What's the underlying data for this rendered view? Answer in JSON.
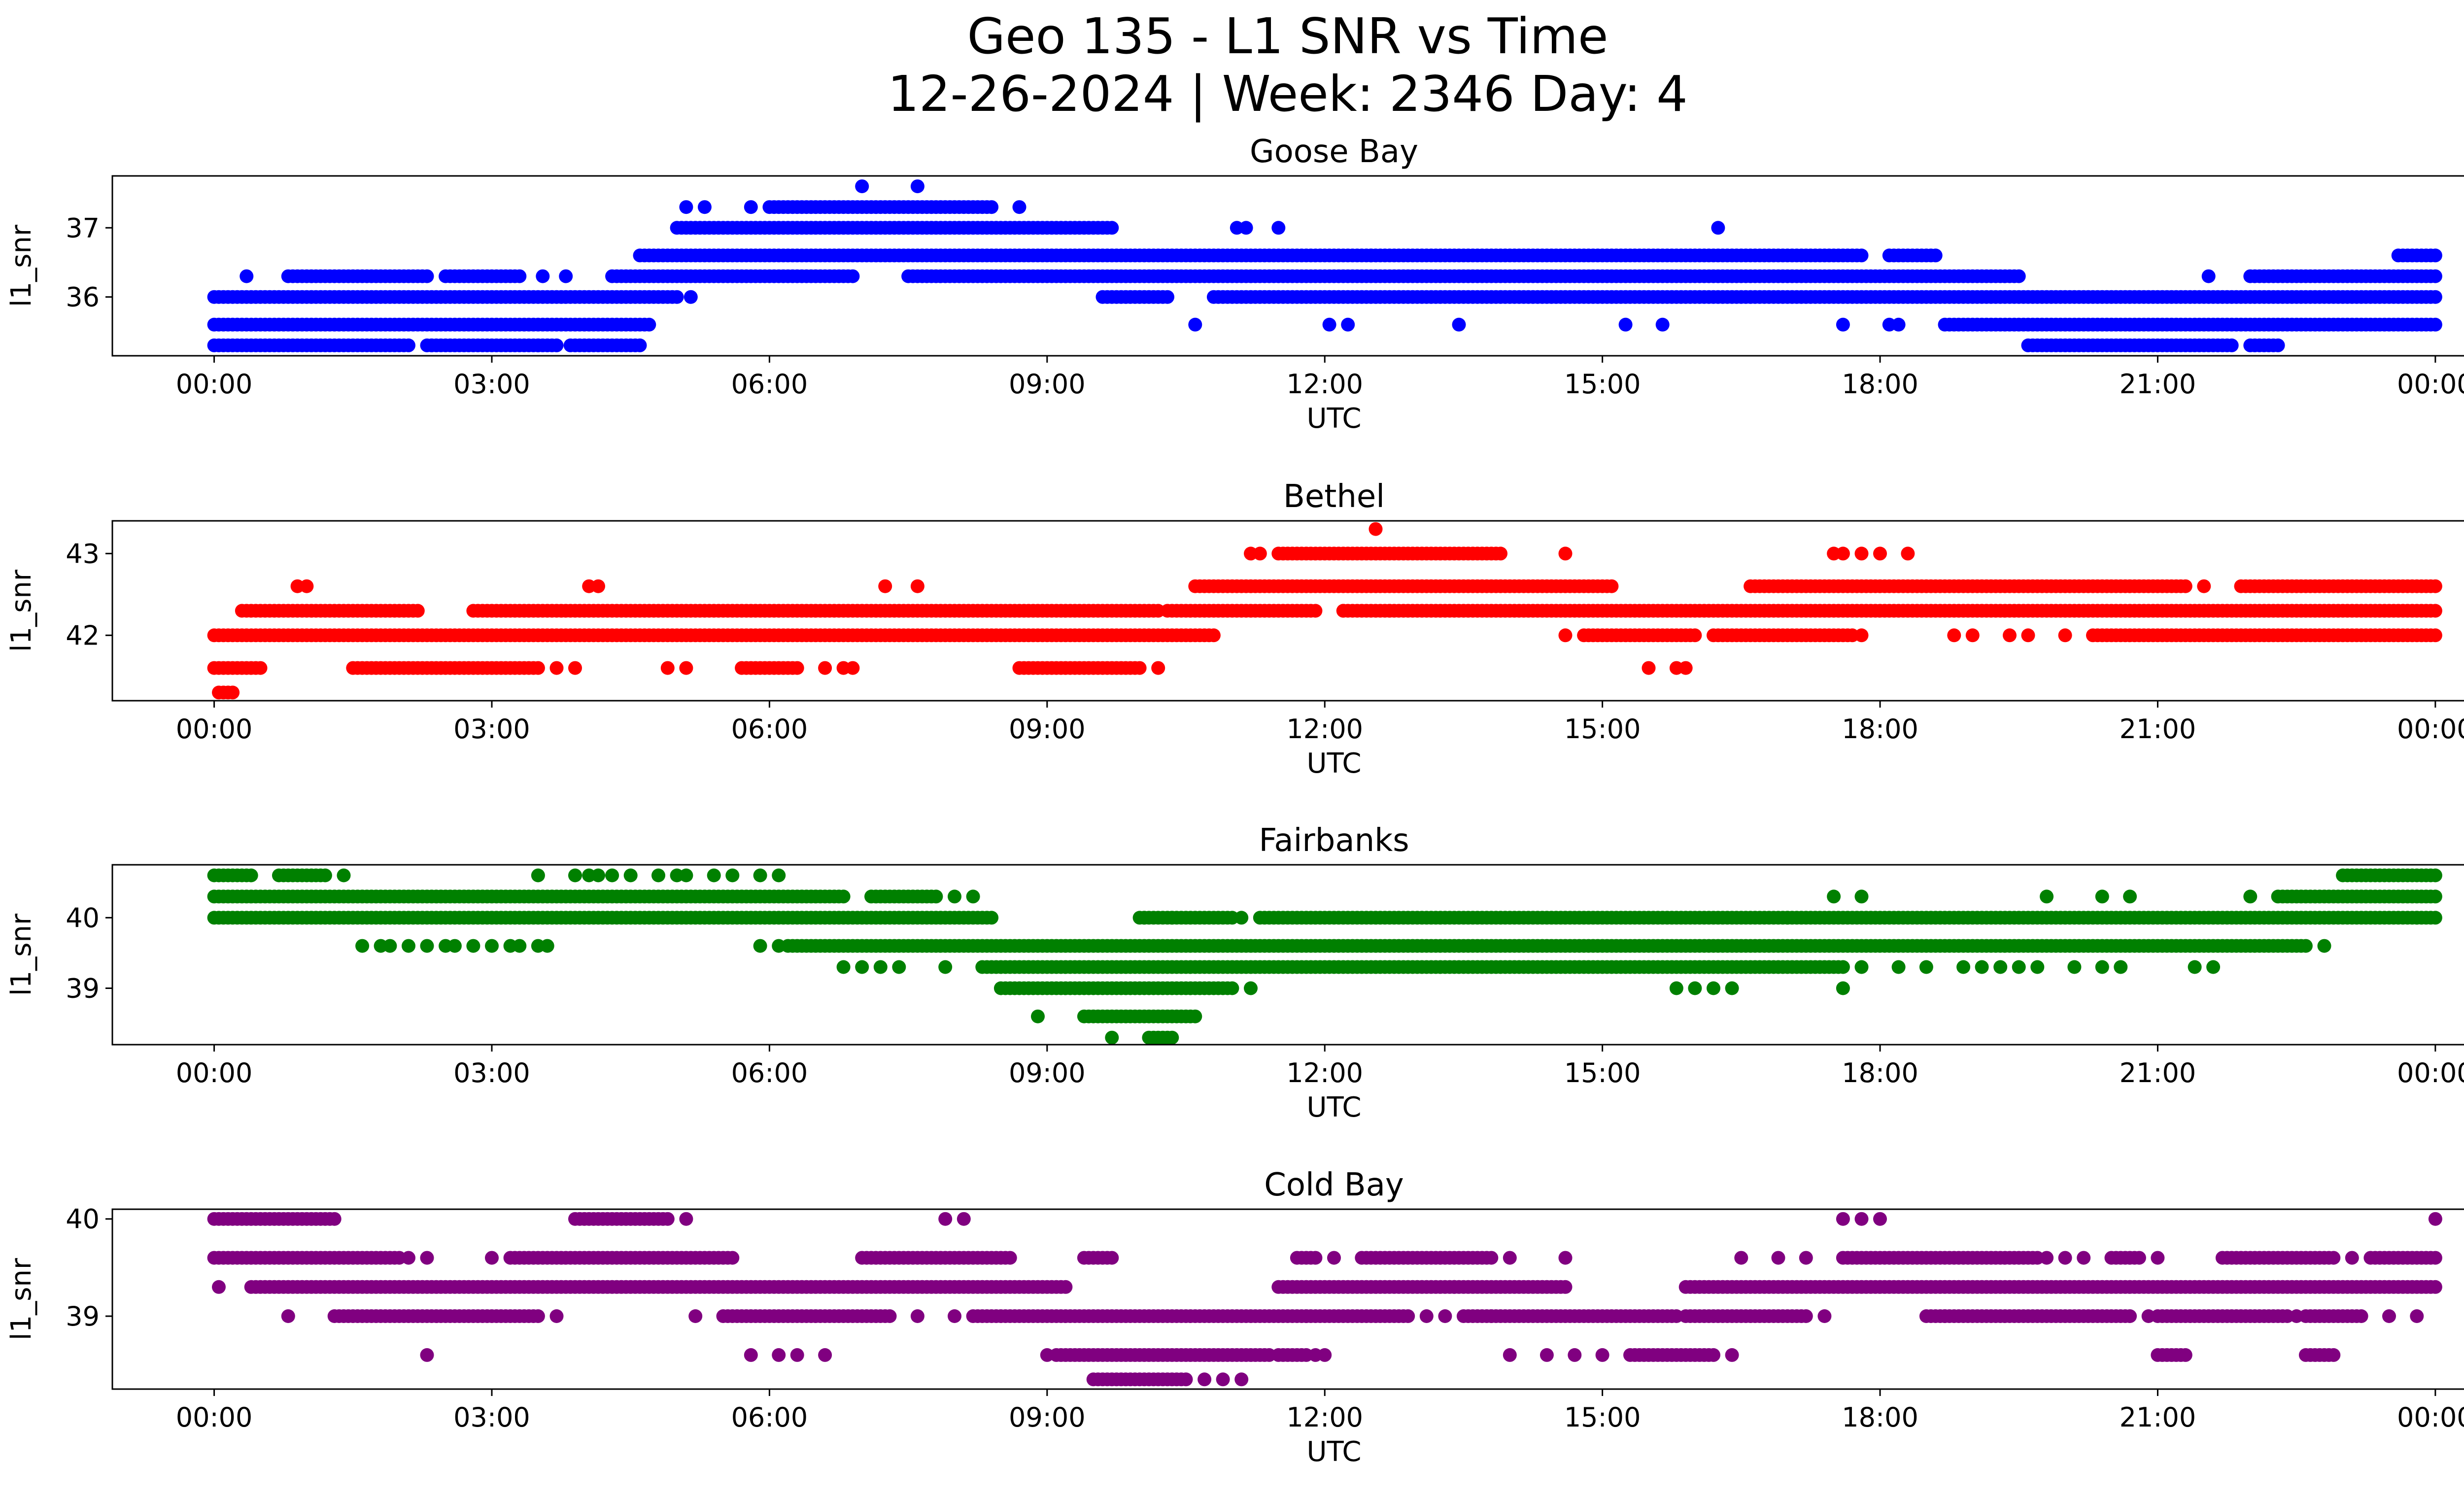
{
  "figure": {
    "title_line1": "Geo 135 - L1 SNR vs Time",
    "title_line2": "12-26-2024 | Week: 2346 Day: 4"
  },
  "chart_data": [
    {
      "type": "scatter",
      "title": "Goose Bay",
      "xlabel": "UTC",
      "ylabel": "l1_snr",
      "color": "#0000ff",
      "xlim_hours": [
        -1.1,
        25.3
      ],
      "ylim": [
        35.15,
        37.75
      ],
      "x_ticks": [
        "00:00",
        "03:00",
        "06:00",
        "09:00",
        "12:00",
        "15:00",
        "18:00",
        "21:00",
        "00:00"
      ],
      "x_tick_hours": [
        0,
        3,
        6,
        9,
        12,
        15,
        18,
        21,
        24
      ],
      "y_ticks": [
        36,
        37
      ],
      "levels": [
        {
          "y": 35.3,
          "runs": [
            [
              0,
              2.1
            ],
            [
              2.3,
              3.7
            ],
            [
              3.85,
              4.6
            ],
            [
              19.6,
              21.8
            ],
            [
              22.0,
              22.3
            ]
          ],
          "dots": [
            2.35,
            3.5
          ]
        },
        {
          "y": 35.6,
          "runs": [
            [
              0,
              4.7
            ],
            [
              18.7,
              24
            ]
          ],
          "dots": [
            10.6,
            12.05,
            12.25,
            13.45,
            15.25,
            15.65,
            17.6,
            18.1,
            18.2
          ]
        },
        {
          "y": 36.0,
          "runs": [
            [
              0,
              5.0
            ],
            [
              9.6,
              10.3
            ],
            [
              10.8,
              24
            ]
          ],
          "dots": [
            5.15
          ]
        },
        {
          "y": 36.3,
          "runs": [
            [
              0.8,
              2.3
            ],
            [
              2.5,
              3.3
            ],
            [
              4.3,
              6.9
            ],
            [
              7.5,
              19.5
            ],
            [
              22.0,
              24
            ]
          ],
          "dots": [
            0.35,
            3.55,
            3.8,
            21.55
          ]
        },
        {
          "y": 36.6,
          "runs": [
            [
              4.6,
              12.5
            ],
            [
              12.5,
              17.8
            ],
            [
              18.1,
              18.6
            ],
            [
              23.6,
              24
            ]
          ]
        },
        {
          "y": 37.0,
          "runs": [
            [
              5.0,
              9.7
            ]
          ],
          "dots": [
            11.05,
            11.15,
            11.5,
            16.25
          ]
        },
        {
          "y": 37.3,
          "runs": [
            [
              6.0,
              8.4
            ]
          ],
          "dots": [
            5.1,
            5.3,
            5.8,
            8.7
          ]
        },
        {
          "y": 37.6,
          "runs": [],
          "dots": [
            7.0,
            7.6
          ]
        }
      ]
    },
    {
      "type": "scatter",
      "title": "Bethel",
      "xlabel": "UTC",
      "ylabel": "l1_snr",
      "color": "#ff0000",
      "xlim_hours": [
        -1.1,
        25.3
      ],
      "ylim": [
        41.2,
        43.4
      ],
      "x_ticks": [
        "00:00",
        "03:00",
        "06:00",
        "09:00",
        "12:00",
        "15:00",
        "18:00",
        "21:00",
        "00:00"
      ],
      "x_tick_hours": [
        0,
        3,
        6,
        9,
        12,
        15,
        18,
        21,
        24
      ],
      "y_ticks": [
        42,
        43
      ],
      "levels": [
        {
          "y": 41.3,
          "runs": [
            [
              0.05,
              0.2
            ]
          ]
        },
        {
          "y": 41.6,
          "runs": [
            [
              0,
              0.5
            ],
            [
              1.5,
              3.5
            ],
            [
              5.7,
              6.3
            ],
            [
              8.7,
              10.0
            ]
          ],
          "dots": [
            3.7,
            3.9,
            4.9,
            5.1,
            6.6,
            6.8,
            6.9,
            10.2,
            15.5,
            15.8,
            15.9
          ]
        },
        {
          "y": 42.0,
          "runs": [
            [
              0,
              10.8
            ],
            [
              14.8,
              16.0
            ],
            [
              16.2,
              17.7
            ],
            [
              20.3,
              24
            ]
          ],
          "dots": [
            14.6,
            17.8,
            18.8,
            19.0,
            19.4,
            19.6,
            20.0
          ]
        },
        {
          "y": 42.3,
          "runs": [
            [
              0.3,
              2.2
            ],
            [
              2.8,
              10.2
            ],
            [
              10.3,
              11.9
            ],
            [
              12.2,
              24
            ]
          ],
          "dots": [
            12.2,
            12.7
          ]
        },
        {
          "y": 42.6,
          "runs": [
            [
              10.6,
              15.1
            ],
            [
              16.6,
              21.3
            ],
            [
              21.9,
              24
            ]
          ],
          "dots": [
            0.9,
            1.0,
            4.05,
            4.15,
            7.25,
            7.6,
            21.5
          ]
        },
        {
          "y": 43.0,
          "runs": [
            [
              11.5,
              13.9
            ]
          ],
          "dots": [
            11.2,
            11.3,
            14.6,
            17.5,
            17.6,
            17.8,
            18.0,
            18.3
          ]
        },
        {
          "y": 43.3,
          "runs": [],
          "dots": [
            12.55
          ]
        }
      ]
    },
    {
      "type": "scatter",
      "title": "Fairbanks",
      "xlabel": "UTC",
      "ylabel": "l1_snr",
      "color": "#008000",
      "xlim_hours": [
        -1.1,
        25.3
      ],
      "ylim": [
        38.2,
        40.75
      ],
      "x_ticks": [
        "00:00",
        "03:00",
        "06:00",
        "09:00",
        "12:00",
        "15:00",
        "18:00",
        "21:00",
        "00:00"
      ],
      "x_tick_hours": [
        0,
        3,
        6,
        9,
        12,
        15,
        18,
        21,
        24
      ],
      "y_ticks": [
        39,
        40
      ],
      "levels": [
        {
          "y": 38.3,
          "runs": [
            [
              10.1,
              10.35
            ]
          ],
          "dots": [
            9.7
          ]
        },
        {
          "y": 38.6,
          "runs": [
            [
              9.4,
              10.6
            ]
          ],
          "dots": [
            8.9
          ]
        },
        {
          "y": 39.0,
          "runs": [
            [
              8.5,
              11.0
            ]
          ],
          "dots": [
            11.2,
            15.8,
            16.0,
            16.2,
            16.4,
            17.6
          ]
        },
        {
          "y": 39.3,
          "runs": [
            [
              8.3,
              17.6
            ]
          ],
          "dots": [
            6.8,
            7.0,
            7.2,
            7.4,
            7.9,
            17.8,
            18.2,
            18.5,
            18.9,
            19.1,
            19.3,
            19.5,
            19.7,
            20.1,
            20.4,
            20.6,
            21.4,
            21.6
          ]
        },
        {
          "y": 39.6,
          "runs": [
            [
              6.2,
              22.6
            ]
          ],
          "dots": [
            1.6,
            1.8,
            1.9,
            2.1,
            2.3,
            2.5,
            2.6,
            2.8,
            3.0,
            3.2,
            3.3,
            3.5,
            3.6,
            5.9,
            6.1,
            22.8
          ]
        },
        {
          "y": 40.0,
          "runs": [
            [
              0,
              8.4
            ],
            [
              10.0,
              11.0
            ],
            [
              11.3,
              17.0
            ],
            [
              17.0,
              24
            ]
          ],
          "dots": [
            10.05,
            10.35,
            11.1,
            23.8
          ]
        },
        {
          "y": 40.3,
          "runs": [
            [
              0,
              6.8
            ],
            [
              7.1,
              7.8
            ],
            [
              22.3,
              24
            ]
          ],
          "dots": [
            8.0,
            8.2,
            17.5,
            17.8,
            19.8,
            20.4,
            20.7,
            22.0
          ]
        },
        {
          "y": 40.6,
          "runs": [
            [
              0,
              0.4
            ],
            [
              0.7,
              1.2
            ],
            [
              23.0,
              24
            ]
          ],
          "dots": [
            1.4,
            3.5,
            3.9,
            4.05,
            4.15,
            4.3,
            4.5,
            4.8,
            5.0,
            5.1,
            5.4,
            5.6,
            5.9,
            6.1
          ]
        }
      ]
    },
    {
      "type": "scatter",
      "title": "Cold Bay",
      "xlabel": "UTC",
      "ylabel": "l1_snr",
      "color": "#800080",
      "xlim_hours": [
        -1.1,
        25.3
      ],
      "ylim": [
        38.25,
        40.1
      ],
      "x_ticks": [
        "00:00",
        "03:00",
        "06:00",
        "09:00",
        "12:00",
        "15:00",
        "18:00",
        "21:00",
        "00:00"
      ],
      "x_tick_hours": [
        0,
        3,
        6,
        9,
        12,
        15,
        18,
        21,
        24
      ],
      "y_ticks": [
        39,
        40
      ],
      "levels": [
        {
          "y": 38.35,
          "runs": [
            [
              9.5,
              10.5
            ]
          ],
          "dots": [
            10.7,
            10.9,
            11.1
          ]
        },
        {
          "y": 38.6,
          "runs": [
            [
              9.1,
              11.4
            ],
            [
              11.5,
              11.8
            ],
            [
              15.3,
              16.2
            ],
            [
              21.0,
              21.3
            ],
            [
              22.6,
              22.9
            ]
          ],
          "dots": [
            2.3,
            5.8,
            6.1,
            6.3,
            6.6,
            9.0,
            11.9,
            12.0,
            14.0,
            14.4,
            14.7,
            15.0,
            16.4
          ]
        },
        {
          "y": 39.0,
          "runs": [
            [
              1.3,
              3.5
            ],
            [
              5.5,
              7.3
            ],
            [
              8.2,
              11.8
            ],
            [
              11.8,
              12.9
            ],
            [
              13.5,
              15.8
            ],
            [
              15.9,
              17.2
            ],
            [
              18.5,
              20.7
            ],
            [
              21.0,
              22.4
            ],
            [
              22.6,
              23.2
            ]
          ],
          "dots": [
            0.8,
            5.2,
            3.7,
            7.6,
            8.0,
            13.1,
            13.3,
            13.8,
            17.4,
            18.7,
            20.9,
            22.5,
            23.5,
            23.8
          ]
        },
        {
          "y": 39.3,
          "runs": [
            [
              0.4,
              9.2
            ],
            [
              11.5,
              14.6
            ],
            [
              15.9,
              24
            ]
          ],
          "dots": [
            0.05,
            13.4
          ]
        },
        {
          "y": 39.6,
          "runs": [
            [
              0,
              2.0
            ],
            [
              3.2,
              5.6
            ],
            [
              7.0,
              8.6
            ],
            [
              9.4,
              9.7
            ],
            [
              11.7,
              11.9
            ],
            [
              12.4,
              13.8
            ],
            [
              17.6,
              19.7
            ],
            [
              20.5,
              20.8
            ],
            [
              21.7,
              22.9
            ],
            [
              23.3,
              24
            ]
          ],
          "dots": [
            2.1,
            2.3,
            3.0,
            12.1,
            14.0,
            14.6,
            16.5,
            16.9,
            17.2,
            19.8,
            20.0,
            20.2,
            21.0,
            23.1
          ]
        },
        {
          "y": 40.0,
          "runs": [
            [
              0,
              1.3
            ],
            [
              3.9,
              4.9
            ]
          ],
          "dots": [
            5.1,
            7.9,
            8.1,
            17.6,
            17.8,
            18.0,
            24.0
          ]
        }
      ]
    }
  ]
}
